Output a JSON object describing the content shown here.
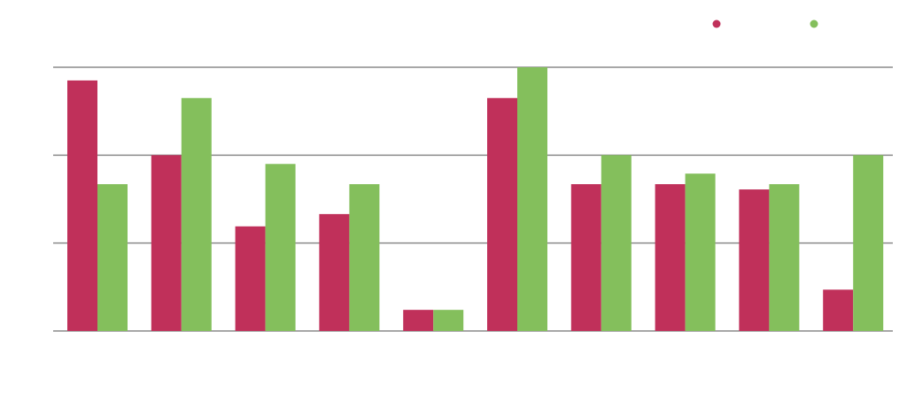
{
  "chart_data": {
    "type": "bar",
    "categories": [
      null,
      null,
      null,
      null,
      null,
      null,
      null,
      null,
      null,
      null
    ],
    "series": [
      {
        "color": "#c0305a",
        "values": [
          2.85,
          2.0,
          1.19,
          1.33,
          0.24,
          2.65,
          1.67,
          1.67,
          1.61,
          0.47
        ]
      },
      {
        "color": "#84bf5c",
        "values": [
          1.67,
          2.65,
          1.9,
          1.67,
          0.24,
          3.0,
          2.0,
          1.79,
          1.67,
          2.0
        ]
      }
    ],
    "ylim": [
      0,
      3
    ],
    "yticks": [
      0,
      1,
      2,
      3
    ],
    "grid": true,
    "legend": "top-right"
  }
}
